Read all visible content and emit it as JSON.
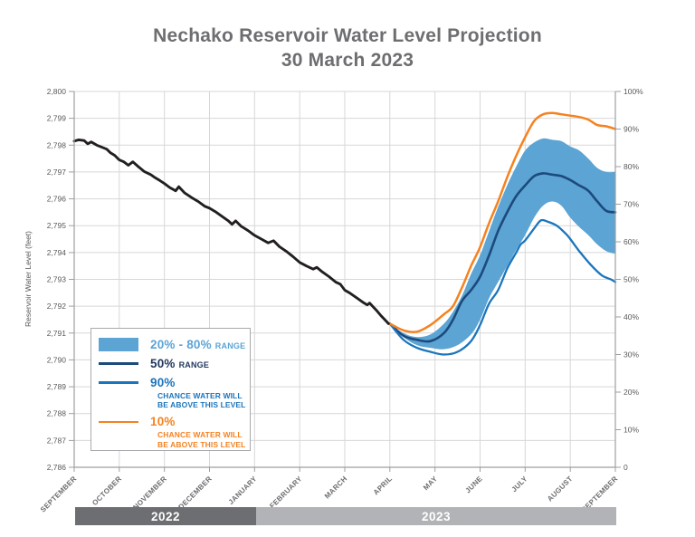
{
  "title": {
    "line1": "Nechako Reservoir Water Level Projection",
    "line2": "30 March 2023"
  },
  "y_axis": {
    "title": "Reservoir Water Level (feet)",
    "labels": [
      "2,800",
      "2,799",
      "2,798",
      "2,797",
      "2,796",
      "2,795",
      "2,794",
      "2,793",
      "2,792",
      "2,791",
      "2,790",
      "2,789",
      "2,788",
      "2,787",
      "2,786"
    ]
  },
  "right_axis": {
    "labels": [
      "100%",
      "90%",
      "80%",
      "70%",
      "60%",
      "50%",
      "40%",
      "30%",
      "20%",
      "10%",
      "0"
    ]
  },
  "x_axis": {
    "months": [
      "SEPTEMBER",
      "OCTOBER",
      "NOVEMBER",
      "DECEMBER",
      "JANUARY",
      "FEBRUARY",
      "MARCH",
      "APRIL",
      "MAY",
      "JUNE",
      "JULY",
      "AUGUST",
      "SEPTEMBER"
    ]
  },
  "legend": {
    "items": [
      {
        "label": "20% - 80%",
        "suffix": "RANGE"
      },
      {
        "label": "50%",
        "suffix": "RANGE"
      },
      {
        "label": "90%",
        "desc1": "CHANCE WATER WILL",
        "desc2": "BE ABOVE THIS LEVEL"
      },
      {
        "label": "10%",
        "desc1": "CHANCE WATER WILL",
        "desc2": "BE ABOVE THIS LEVEL"
      }
    ]
  },
  "timeline": {
    "bars": [
      {
        "label": "2022",
        "color": "#6d6e71"
      },
      {
        "label": "2023",
        "color": "#b1b3b6"
      }
    ]
  },
  "colors": {
    "band": "#5ba4d4",
    "band_text": "#5ba4d4",
    "navy_line": "#1c4a7c",
    "navy_text": "#21375f",
    "blue": "#1b75bc",
    "orange": "#f58220",
    "black": "#231f20",
    "grid": "#d7d7d8",
    "axis": "#9d9fa2",
    "title_gray": "#6d6e71",
    "bar_2022": "#6d6e71",
    "bar_2023": "#b1b3b6"
  },
  "chart_data": {
    "type": "line",
    "title": "Nechako Reservoir Water Level Projection 30 March 2023",
    "xlabel_months": [
      "SEPTEMBER",
      "OCTOBER",
      "NOVEMBER",
      "DECEMBER",
      "JANUARY",
      "FEBRUARY",
      "MARCH",
      "APRIL",
      "MAY",
      "JUNE",
      "JULY",
      "AUGUST",
      "SEPTEMBER"
    ],
    "ylabel_left": "Reservoir Water Level (feet)",
    "y_left_range": [
      2786,
      2800
    ],
    "y_right_range_percent": [
      0,
      100
    ],
    "x_unit": "months since 1 September 2022",
    "x_range": [
      0,
      12
    ],
    "grid": true,
    "legend_position": "lower-left",
    "series": [
      {
        "name": "historical",
        "style": "solid black line, observed water level Sep 2022 - 30 Mar 2023",
        "points": [
          [
            0.0,
            2798.15
          ],
          [
            0.1,
            2798.2
          ],
          [
            0.22,
            2798.17
          ],
          [
            0.3,
            2798.05
          ],
          [
            0.38,
            2798.12
          ],
          [
            0.5,
            2798.0
          ],
          [
            0.62,
            2797.92
          ],
          [
            0.72,
            2797.85
          ],
          [
            0.8,
            2797.72
          ],
          [
            0.9,
            2797.62
          ],
          [
            1.0,
            2797.45
          ],
          [
            1.1,
            2797.38
          ],
          [
            1.2,
            2797.25
          ],
          [
            1.3,
            2797.38
          ],
          [
            1.42,
            2797.2
          ],
          [
            1.55,
            2797.02
          ],
          [
            1.7,
            2796.9
          ],
          [
            1.8,
            2796.78
          ],
          [
            1.9,
            2796.68
          ],
          [
            2.0,
            2796.57
          ],
          [
            2.12,
            2796.42
          ],
          [
            2.25,
            2796.3
          ],
          [
            2.32,
            2796.45
          ],
          [
            2.45,
            2796.22
          ],
          [
            2.6,
            2796.05
          ],
          [
            2.75,
            2795.9
          ],
          [
            2.9,
            2795.72
          ],
          [
            3.0,
            2795.65
          ],
          [
            3.15,
            2795.5
          ],
          [
            3.3,
            2795.32
          ],
          [
            3.42,
            2795.18
          ],
          [
            3.5,
            2795.05
          ],
          [
            3.58,
            2795.18
          ],
          [
            3.7,
            2794.98
          ],
          [
            3.85,
            2794.82
          ],
          [
            4.0,
            2794.64
          ],
          [
            4.15,
            2794.5
          ],
          [
            4.3,
            2794.36
          ],
          [
            4.42,
            2794.44
          ],
          [
            4.55,
            2794.22
          ],
          [
            4.7,
            2794.05
          ],
          [
            4.85,
            2793.85
          ],
          [
            5.0,
            2793.63
          ],
          [
            5.15,
            2793.5
          ],
          [
            5.3,
            2793.38
          ],
          [
            5.38,
            2793.45
          ],
          [
            5.5,
            2793.28
          ],
          [
            5.65,
            2793.1
          ],
          [
            5.8,
            2792.9
          ],
          [
            5.9,
            2792.82
          ],
          [
            6.0,
            2792.6
          ],
          [
            6.12,
            2792.48
          ],
          [
            6.25,
            2792.33
          ],
          [
            6.4,
            2792.15
          ],
          [
            6.5,
            2792.05
          ],
          [
            6.55,
            2792.12
          ],
          [
            6.7,
            2791.85
          ],
          [
            6.8,
            2791.65
          ],
          [
            6.9,
            2791.48
          ],
          [
            6.97,
            2791.35
          ]
        ]
      },
      {
        "name": "band_20_80",
        "style": "filled band, 20% - 80% range",
        "upper": [
          [
            7.0,
            2791.35
          ],
          [
            7.3,
            2791.0
          ],
          [
            7.6,
            2790.85
          ],
          [
            7.9,
            2790.95
          ],
          [
            8.2,
            2791.35
          ],
          [
            8.4,
            2791.8
          ],
          [
            8.6,
            2792.4
          ],
          [
            8.8,
            2793.2
          ],
          [
            9.0,
            2793.9
          ],
          [
            9.2,
            2794.8
          ],
          [
            9.4,
            2795.7
          ],
          [
            9.6,
            2796.5
          ],
          [
            9.8,
            2797.2
          ],
          [
            10.0,
            2797.8
          ],
          [
            10.2,
            2798.1
          ],
          [
            10.4,
            2798.25
          ],
          [
            10.6,
            2798.2
          ],
          [
            10.8,
            2798.15
          ],
          [
            11.0,
            2797.95
          ],
          [
            11.2,
            2797.8
          ],
          [
            11.4,
            2797.5
          ],
          [
            11.6,
            2797.15
          ],
          [
            11.8,
            2797.0
          ],
          [
            12.0,
            2797.0
          ]
        ],
        "lower": [
          [
            7.0,
            2791.35
          ],
          [
            7.3,
            2790.85
          ],
          [
            7.6,
            2790.55
          ],
          [
            7.9,
            2790.45
          ],
          [
            8.2,
            2790.4
          ],
          [
            8.5,
            2790.55
          ],
          [
            8.8,
            2790.95
          ],
          [
            9.0,
            2791.5
          ],
          [
            9.2,
            2792.3
          ],
          [
            9.4,
            2792.9
          ],
          [
            9.6,
            2793.5
          ],
          [
            9.8,
            2794.1
          ],
          [
            10.0,
            2794.65
          ],
          [
            10.2,
            2795.3
          ],
          [
            10.4,
            2795.75
          ],
          [
            10.6,
            2795.9
          ],
          [
            10.8,
            2795.75
          ],
          [
            11.0,
            2795.3
          ],
          [
            11.2,
            2794.95
          ],
          [
            11.4,
            2794.65
          ],
          [
            11.6,
            2794.3
          ],
          [
            11.8,
            2794.05
          ],
          [
            12.0,
            2793.95
          ]
        ]
      },
      {
        "name": "p50_median",
        "style": "dark navy line, 50% range",
        "points": [
          [
            7.0,
            2791.35
          ],
          [
            7.3,
            2790.9
          ],
          [
            7.6,
            2790.75
          ],
          [
            7.9,
            2790.7
          ],
          [
            8.2,
            2791.0
          ],
          [
            8.4,
            2791.5
          ],
          [
            8.6,
            2792.2
          ],
          [
            8.8,
            2792.6
          ],
          [
            9.0,
            2793.1
          ],
          [
            9.2,
            2793.9
          ],
          [
            9.4,
            2794.8
          ],
          [
            9.6,
            2795.5
          ],
          [
            9.8,
            2796.1
          ],
          [
            10.0,
            2796.5
          ],
          [
            10.2,
            2796.85
          ],
          [
            10.4,
            2796.95
          ],
          [
            10.6,
            2796.9
          ],
          [
            10.8,
            2796.85
          ],
          [
            11.0,
            2796.7
          ],
          [
            11.2,
            2796.5
          ],
          [
            11.4,
            2796.3
          ],
          [
            11.6,
            2795.9
          ],
          [
            11.8,
            2795.55
          ],
          [
            12.0,
            2795.5
          ]
        ]
      },
      {
        "name": "p90_chance_above",
        "style": "blue line, 90% chance water will be above this level",
        "points": [
          [
            7.0,
            2791.35
          ],
          [
            7.3,
            2790.75
          ],
          [
            7.6,
            2790.45
          ],
          [
            7.9,
            2790.3
          ],
          [
            8.2,
            2790.2
          ],
          [
            8.5,
            2790.3
          ],
          [
            8.8,
            2790.7
          ],
          [
            9.0,
            2791.3
          ],
          [
            9.2,
            2792.1
          ],
          [
            9.4,
            2792.6
          ],
          [
            9.6,
            2793.4
          ],
          [
            9.8,
            2794.0
          ],
          [
            9.9,
            2794.3
          ],
          [
            10.0,
            2794.45
          ],
          [
            10.2,
            2794.9
          ],
          [
            10.35,
            2795.2
          ],
          [
            10.5,
            2795.15
          ],
          [
            10.7,
            2795.0
          ],
          [
            10.9,
            2794.7
          ],
          [
            11.0,
            2794.5
          ],
          [
            11.2,
            2794.05
          ],
          [
            11.45,
            2793.55
          ],
          [
            11.7,
            2793.15
          ],
          [
            11.9,
            2793.0
          ],
          [
            12.0,
            2792.9
          ]
        ]
      },
      {
        "name": "p10_chance_above",
        "style": "orange line, 10% chance water will be above this level",
        "points": [
          [
            7.0,
            2791.35
          ],
          [
            7.3,
            2791.1
          ],
          [
            7.6,
            2791.05
          ],
          [
            7.9,
            2791.3
          ],
          [
            8.2,
            2791.7
          ],
          [
            8.4,
            2792.0
          ],
          [
            8.6,
            2792.7
          ],
          [
            8.8,
            2793.5
          ],
          [
            9.0,
            2794.2
          ],
          [
            9.2,
            2795.1
          ],
          [
            9.4,
            2795.9
          ],
          [
            9.6,
            2796.8
          ],
          [
            9.8,
            2797.6
          ],
          [
            10.0,
            2798.3
          ],
          [
            10.2,
            2798.9
          ],
          [
            10.4,
            2799.15
          ],
          [
            10.6,
            2799.2
          ],
          [
            10.8,
            2799.15
          ],
          [
            11.0,
            2799.1
          ],
          [
            11.2,
            2799.05
          ],
          [
            11.4,
            2798.95
          ],
          [
            11.6,
            2798.75
          ],
          [
            11.8,
            2798.7
          ],
          [
            12.0,
            2798.6
          ]
        ]
      }
    ]
  }
}
